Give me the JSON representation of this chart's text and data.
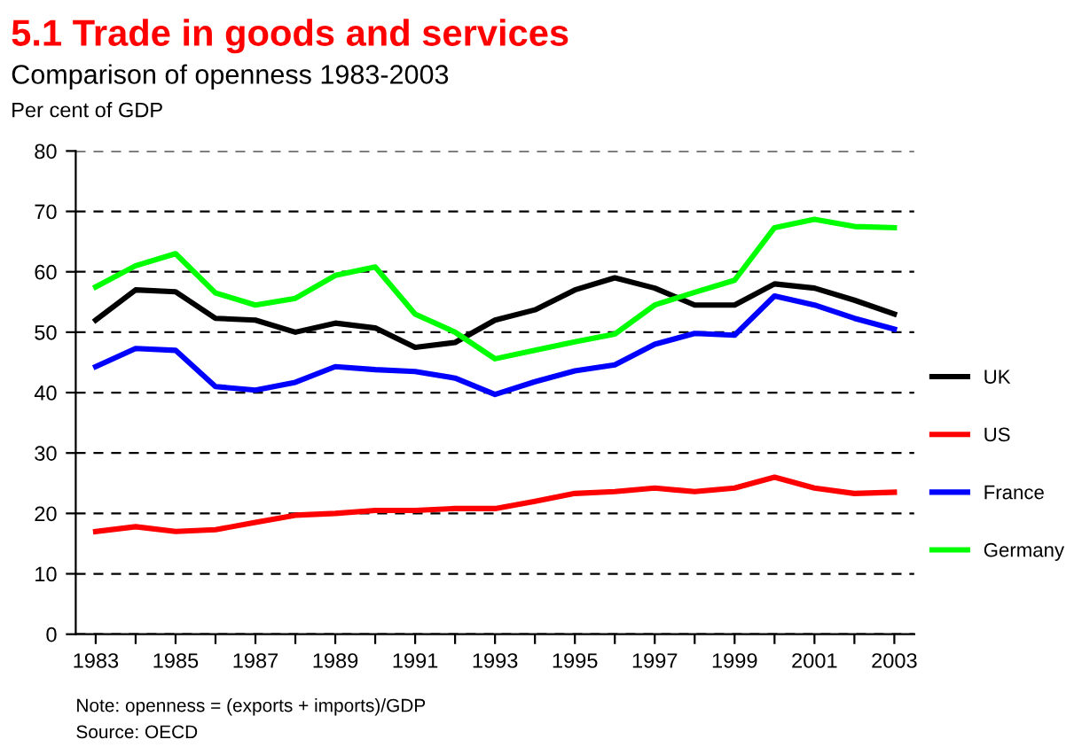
{
  "chart_data": {
    "type": "line",
    "title": "5.1 Trade in goods and services",
    "subtitle": "Comparison of openness 1983-2003",
    "ylabel": "Per cent of GDP",
    "x": [
      1983,
      1984,
      1985,
      1986,
      1987,
      1988,
      1989,
      1990,
      1991,
      1992,
      1993,
      1994,
      1995,
      1996,
      1997,
      1998,
      1999,
      2000,
      2001,
      2002,
      2003
    ],
    "series": [
      {
        "name": "UK",
        "color": "#000000",
        "values": [
          52,
          57,
          56.7,
          52.3,
          52,
          50,
          51.5,
          50.7,
          47.5,
          48.3,
          52,
          53.7,
          57,
          59,
          57.3,
          54.5,
          54.5,
          58,
          57.3,
          55.3,
          53
        ]
      },
      {
        "name": "US",
        "color": "#ff0000",
        "values": [
          17,
          17.8,
          17,
          17.3,
          18.5,
          19.7,
          20,
          20.5,
          20.5,
          20.8,
          20.8,
          22,
          23.3,
          23.6,
          24.2,
          23.6,
          24.2,
          26,
          24.2,
          23.3,
          23.5
        ]
      },
      {
        "name": "France",
        "color": "#0000ff",
        "values": [
          44.3,
          47.3,
          47,
          41,
          40.4,
          41.7,
          44.3,
          43.8,
          43.5,
          42.4,
          39.7,
          41.8,
          43.6,
          44.6,
          48,
          49.8,
          49.5,
          56,
          54.5,
          52.3,
          50.5
        ]
      },
      {
        "name": "Germany",
        "color": "#00ff00",
        "values": [
          57.5,
          61,
          63,
          56.5,
          54.5,
          55.6,
          59.4,
          60.8,
          53,
          50,
          45.6,
          47,
          48.4,
          49.7,
          54.5,
          56.6,
          58.6,
          67.3,
          68.7,
          67.5,
          67.3
        ]
      }
    ],
    "xlim": [
      1982.5,
      2003.5
    ],
    "ylim": [
      0,
      80
    ],
    "xticks": [
      1983,
      {
        "value": 1984,
        "label": null
      },
      1985,
      {
        "value": 1986,
        "label": null
      },
      1987,
      {
        "value": 1988,
        "label": null
      },
      1989,
      {
        "value": 1990,
        "label": null
      },
      1991,
      {
        "value": 1992,
        "label": null
      },
      1993,
      {
        "value": 1994,
        "label": null
      },
      1995,
      {
        "value": 1996,
        "label": null
      },
      1997,
      {
        "value": 1998,
        "label": null
      },
      1999,
      {
        "value": 2000,
        "label": null
      },
      2001,
      {
        "value": 2002,
        "label": null
      },
      2003
    ],
    "yticks": [
      0,
      10,
      20,
      30,
      40,
      50,
      60,
      70,
      80
    ],
    "grid": "y",
    "legend": "right",
    "marker": "none",
    "line_style": "solid",
    "annotations": [
      "Note: openness = (exports + imports)/GDP",
      "Source: OECD"
    ]
  }
}
